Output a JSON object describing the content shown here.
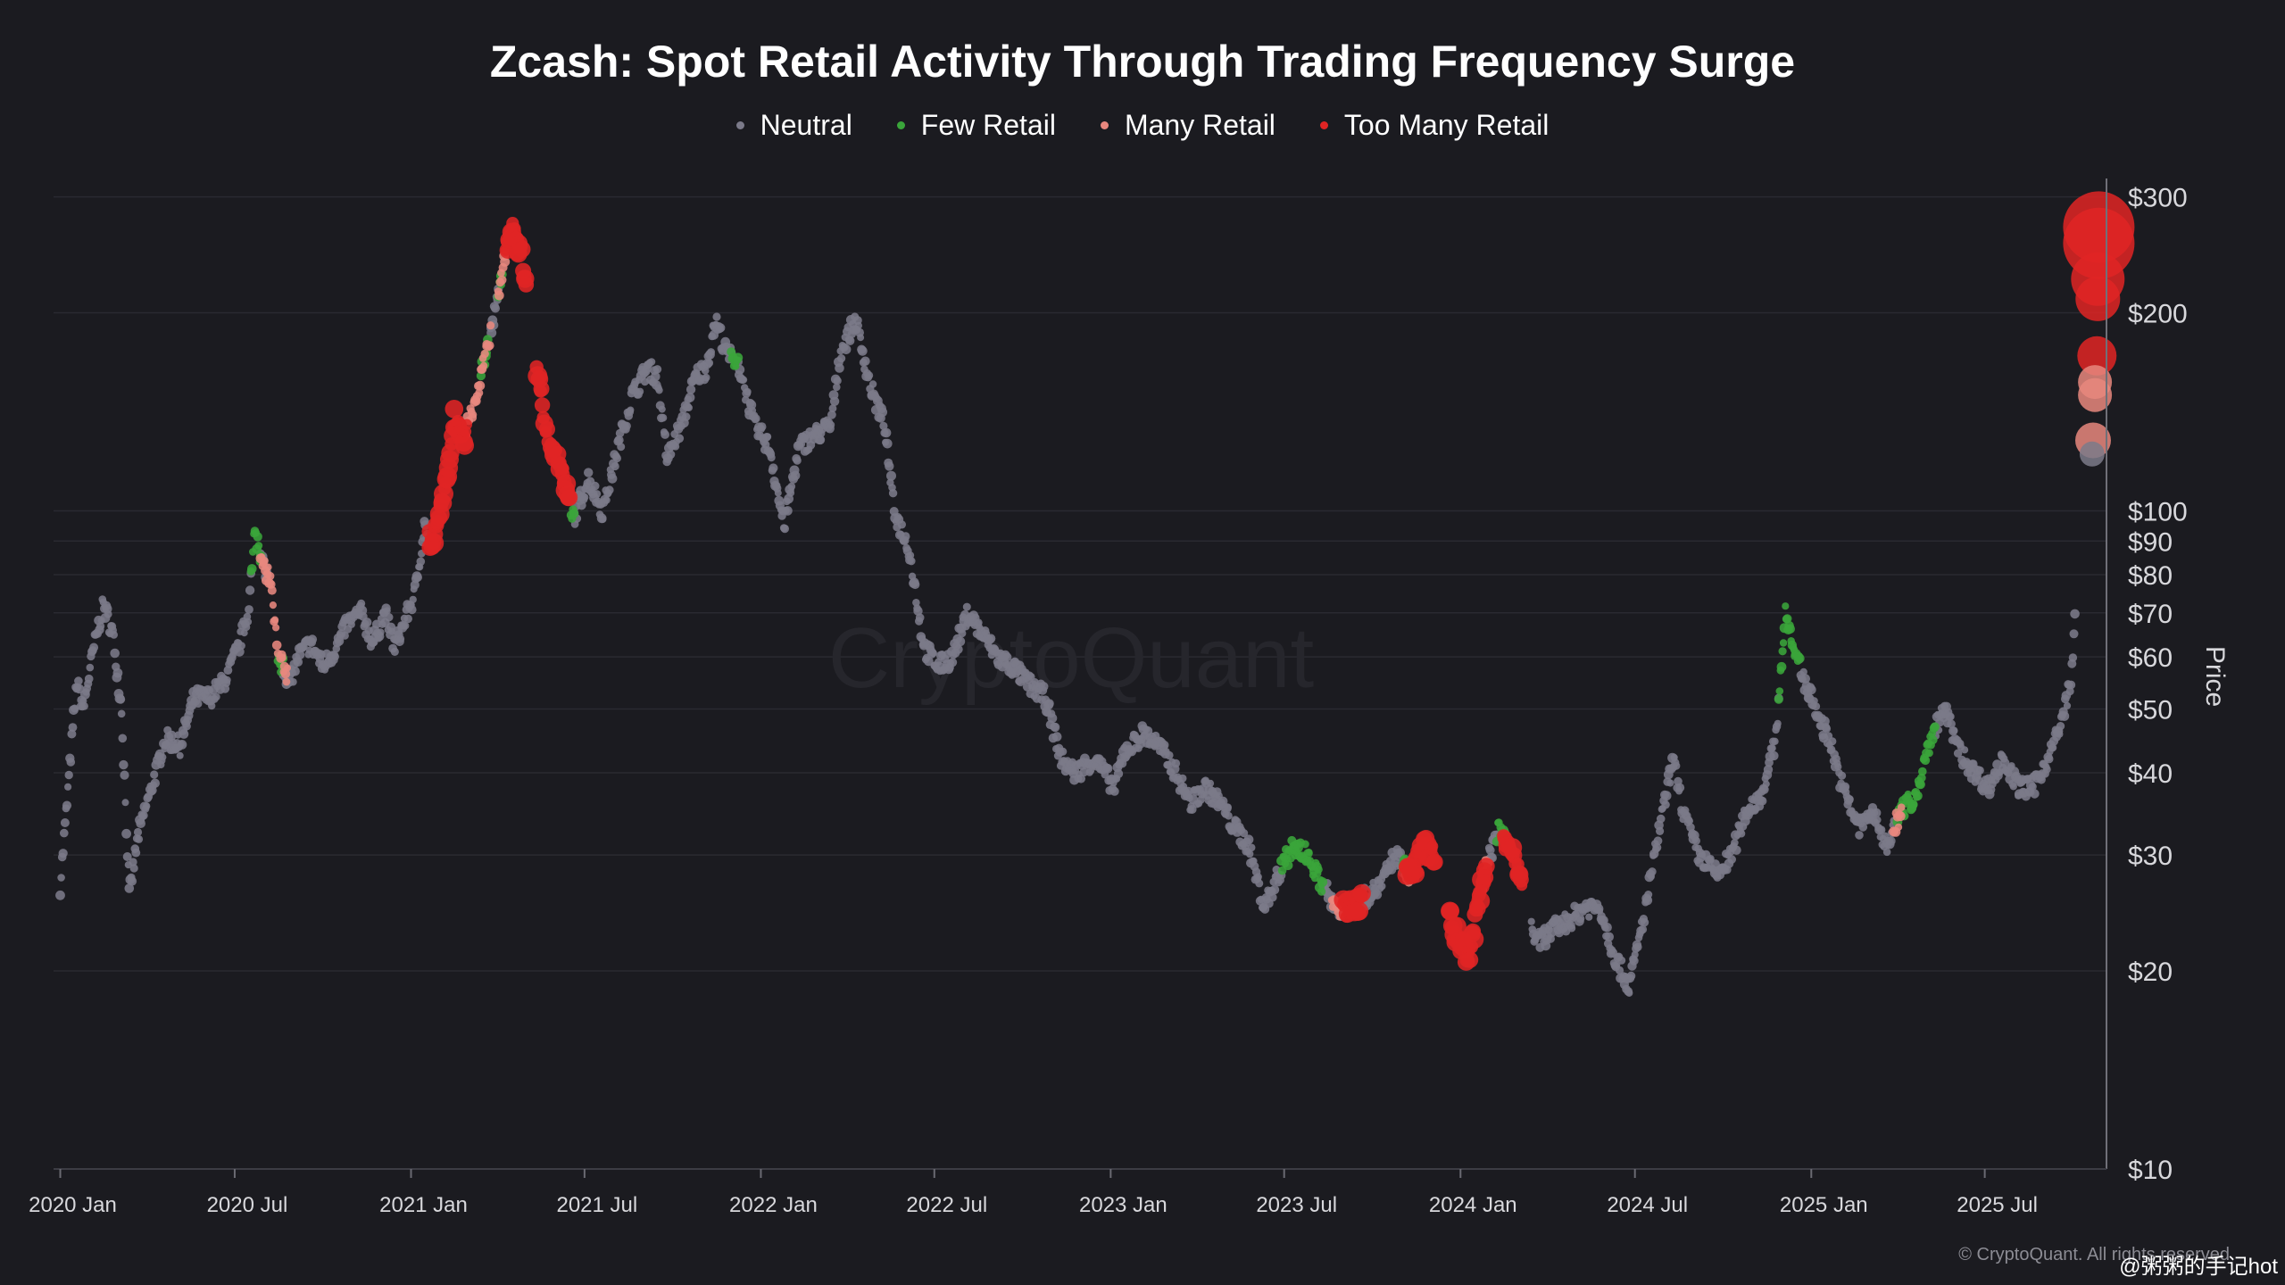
{
  "colors": {
    "background": "#1b1b20",
    "grid": "#2a2a31",
    "neutral": "#7b7a89",
    "few_retail": "#3aa53a",
    "many_retail": "#e8877e",
    "too_many_retail": "#e02424"
  },
  "watermark": "CryptoQuant",
  "footer": "© CryptoQuant. All rights reserved",
  "handle": "@粥粥的手记hot",
  "chart_data": {
    "type": "scatter",
    "title": "Zcash: Spot Retail Activity Through Trading Frequency Surge",
    "xlabel": "",
    "ylabel": "Price",
    "y_scale": "log",
    "ylim": [
      10,
      320
    ],
    "xlim": [
      "2019-12-25",
      "2025-11-05"
    ],
    "grid": true,
    "legend_position": "top-center",
    "x_tick_labels": [
      "2020 Jan",
      "2020 Jul",
      "2021 Jan",
      "2021 Jul",
      "2022 Jan",
      "2022 Jul",
      "2023 Jan",
      "2023 Jul",
      "2024 Jan",
      "2024 Jul",
      "2025 Jan",
      "2025 Jul"
    ],
    "x_tick_dates": [
      "2020-01-01",
      "2020-07-01",
      "2021-01-01",
      "2021-07-01",
      "2022-01-01",
      "2022-07-01",
      "2023-01-01",
      "2023-07-01",
      "2024-01-01",
      "2024-07-01",
      "2025-01-01",
      "2025-07-01"
    ],
    "y_tick_labels": [
      "$300",
      "$200",
      "$100",
      "$90",
      "$80",
      "$70",
      "$60",
      "$50",
      "$40",
      "$30",
      "$20",
      "$10"
    ],
    "y_tick_values": [
      300,
      200,
      100,
      90,
      80,
      70,
      60,
      50,
      40,
      30,
      20,
      10
    ],
    "price_anchors": [
      [
        "2020-01-01",
        27
      ],
      [
        "2020-01-08",
        36
      ],
      [
        "2020-01-18",
        55
      ],
      [
        "2020-01-25",
        50
      ],
      [
        "2020-02-05",
        62
      ],
      [
        "2020-02-15",
        72
      ],
      [
        "2020-02-25",
        65
      ],
      [
        "2020-03-05",
        50
      ],
      [
        "2020-03-13",
        26
      ],
      [
        "2020-03-22",
        32
      ],
      [
        "2020-04-05",
        38
      ],
      [
        "2020-04-20",
        45
      ],
      [
        "2020-05-05",
        44
      ],
      [
        "2020-05-20",
        52
      ],
      [
        "2020-06-05",
        52
      ],
      [
        "2020-06-20",
        55
      ],
      [
        "2020-07-05",
        62
      ],
      [
        "2020-07-15",
        70
      ],
      [
        "2020-07-22",
        93
      ],
      [
        "2020-07-28",
        85
      ],
      [
        "2020-08-08",
        78
      ],
      [
        "2020-08-15",
        60
      ],
      [
        "2020-08-28",
        55
      ],
      [
        "2020-09-05",
        60
      ],
      [
        "2020-09-18",
        63
      ],
      [
        "2020-10-01",
        58
      ],
      [
        "2020-10-15",
        62
      ],
      [
        "2020-10-25",
        67
      ],
      [
        "2020-11-10",
        70
      ],
      [
        "2020-11-22",
        63
      ],
      [
        "2020-12-05",
        70
      ],
      [
        "2020-12-15",
        62
      ],
      [
        "2021-01-05",
        75
      ],
      [
        "2021-01-15",
        95
      ],
      [
        "2021-01-22",
        88
      ],
      [
        "2021-02-05",
        105
      ],
      [
        "2021-02-15",
        140
      ],
      [
        "2021-02-25",
        128
      ],
      [
        "2021-03-10",
        150
      ],
      [
        "2021-03-25",
        185
      ],
      [
        "2021-04-05",
        225
      ],
      [
        "2021-04-15",
        270
      ],
      [
        "2021-04-25",
        250
      ],
      [
        "2021-05-05",
        210
      ],
      [
        "2021-05-12",
        170
      ],
      [
        "2021-05-22",
        130
      ],
      [
        "2021-06-05",
        120
      ],
      [
        "2021-06-20",
        98
      ],
      [
        "2021-07-05",
        112
      ],
      [
        "2021-07-20",
        100
      ],
      [
        "2021-08-05",
        125
      ],
      [
        "2021-08-20",
        150
      ],
      [
        "2021-09-05",
        165
      ],
      [
        "2021-09-15",
        160
      ],
      [
        "2021-09-25",
        120
      ],
      [
        "2021-10-10",
        135
      ],
      [
        "2021-10-25",
        160
      ],
      [
        "2021-11-05",
        165
      ],
      [
        "2021-11-15",
        195
      ],
      [
        "2021-11-25",
        175
      ],
      [
        "2021-12-10",
        165
      ],
      [
        "2021-12-25",
        135
      ],
      [
        "2022-01-10",
        125
      ],
      [
        "2022-01-25",
        95
      ],
      [
        "2022-02-10",
        125
      ],
      [
        "2022-02-25",
        130
      ],
      [
        "2022-03-15",
        135
      ],
      [
        "2022-03-25",
        175
      ],
      [
        "2022-04-10",
        195
      ],
      [
        "2022-04-25",
        155
      ],
      [
        "2022-05-10",
        135
      ],
      [
        "2022-05-20",
        100
      ],
      [
        "2022-06-05",
        87
      ],
      [
        "2022-06-20",
        62
      ],
      [
        "2022-07-05",
        58
      ],
      [
        "2022-07-20",
        60
      ],
      [
        "2022-08-05",
        70
      ],
      [
        "2022-08-20",
        65
      ],
      [
        "2022-09-05",
        60
      ],
      [
        "2022-09-20",
        58
      ],
      [
        "2022-10-05",
        55
      ],
      [
        "2022-10-25",
        52
      ],
      [
        "2022-11-10",
        42
      ],
      [
        "2022-11-25",
        40
      ],
      [
        "2022-12-15",
        42
      ],
      [
        "2023-01-05",
        38
      ],
      [
        "2023-01-15",
        43
      ],
      [
        "2023-02-05",
        46
      ],
      [
        "2023-02-20",
        44
      ],
      [
        "2023-03-10",
        40
      ],
      [
        "2023-03-25",
        36
      ],
      [
        "2023-04-10",
        38
      ],
      [
        "2023-04-25",
        36
      ],
      [
        "2023-05-10",
        33
      ],
      [
        "2023-05-25",
        31
      ],
      [
        "2023-06-10",
        25
      ],
      [
        "2023-06-25",
        28
      ],
      [
        "2023-07-10",
        31
      ],
      [
        "2023-07-25",
        30
      ],
      [
        "2023-08-10",
        27
      ],
      [
        "2023-08-25",
        25
      ],
      [
        "2023-09-10",
        25
      ],
      [
        "2023-09-25",
        26
      ],
      [
        "2023-10-10",
        27
      ],
      [
        "2023-10-25",
        30
      ],
      [
        "2023-11-10",
        28
      ],
      [
        "2023-11-25",
        31
      ],
      [
        "2023-12-10",
        29
      ],
      [
        "2023-12-25",
        23
      ],
      [
        "2024-01-10",
        21
      ],
      [
        "2024-01-25",
        28
      ],
      [
        "2024-02-10",
        33
      ],
      [
        "2024-02-20",
        31
      ],
      [
        "2024-03-05",
        27
      ],
      [
        "2024-03-20",
        22
      ],
      [
        "2024-04-05",
        23
      ],
      [
        "2024-04-25",
        24
      ],
      [
        "2024-05-10",
        25
      ],
      [
        "2024-05-25",
        25
      ],
      [
        "2024-06-10",
        21
      ],
      [
        "2024-06-25",
        19
      ],
      [
        "2024-07-10",
        24
      ],
      [
        "2024-07-25",
        32
      ],
      [
        "2024-08-10",
        42
      ],
      [
        "2024-08-20",
        35
      ],
      [
        "2024-09-05",
        30
      ],
      [
        "2024-09-25",
        28
      ],
      [
        "2024-10-10",
        30
      ],
      [
        "2024-10-25",
        35
      ],
      [
        "2024-11-10",
        37
      ],
      [
        "2024-11-25",
        45
      ],
      [
        "2024-12-05",
        70
      ],
      [
        "2024-12-15",
        62
      ],
      [
        "2024-12-25",
        55
      ],
      [
        "2025-01-10",
        48
      ],
      [
        "2025-01-20",
        45
      ],
      [
        "2025-02-05",
        37
      ],
      [
        "2025-02-20",
        33
      ],
      [
        "2025-03-05",
        35
      ],
      [
        "2025-03-20",
        31
      ],
      [
        "2025-04-05",
        35
      ],
      [
        "2025-04-20",
        37
      ],
      [
        "2025-05-05",
        45
      ],
      [
        "2025-05-20",
        50
      ],
      [
        "2025-06-05",
        43
      ],
      [
        "2025-06-20",
        40
      ],
      [
        "2025-07-05",
        38
      ],
      [
        "2025-07-20",
        42
      ],
      [
        "2025-08-05",
        38
      ],
      [
        "2025-08-20",
        38
      ],
      [
        "2025-09-05",
        42
      ],
      [
        "2025-09-20",
        48
      ],
      [
        "2025-10-01",
        58
      ],
      [
        "2025-10-03",
        72
      ]
    ],
    "series": [
      {
        "name": "Neutral",
        "size": "small",
        "ranges": [
          [
            "2020-01-01",
            "2020-07-18"
          ],
          [
            "2020-07-28",
            "2020-08-05"
          ],
          [
            "2020-08-20",
            "2021-01-20"
          ],
          [
            "2021-03-25",
            "2021-04-02"
          ],
          [
            "2021-06-20",
            "2021-12-01"
          ],
          [
            "2021-12-08",
            "2022-12-31"
          ],
          [
            "2023-01-01",
            "2023-06-28"
          ],
          [
            "2023-08-10",
            "2023-09-01"
          ],
          [
            "2023-09-20",
            "2023-11-01"
          ],
          [
            "2024-01-28",
            "2024-02-08"
          ],
          [
            "2024-03-15",
            "2024-11-28"
          ],
          [
            "2024-12-20",
            "2025-03-28"
          ],
          [
            "2025-05-10",
            "2025-10-03"
          ]
        ]
      },
      {
        "name": "Few Retail",
        "size": "small",
        "ranges": [
          [
            "2020-07-18",
            "2020-07-28"
          ],
          [
            "2020-08-15",
            "2020-08-20"
          ],
          [
            "2021-03-15",
            "2021-03-22"
          ],
          [
            "2021-04-02",
            "2021-04-06"
          ],
          [
            "2021-06-15",
            "2021-06-20"
          ],
          [
            "2021-12-01",
            "2021-12-08"
          ],
          [
            "2023-06-28",
            "2023-08-10"
          ],
          [
            "2023-11-01",
            "2023-11-05"
          ],
          [
            "2024-02-08",
            "2024-02-20"
          ],
          [
            "2024-11-28",
            "2024-12-20"
          ],
          [
            "2025-04-01",
            "2025-05-10"
          ]
        ]
      },
      {
        "name": "Many Retail",
        "size": "small",
        "ranges": [
          [
            "2020-07-28",
            "2020-08-15"
          ],
          [
            "2020-08-18",
            "2020-08-25"
          ],
          [
            "2021-02-28",
            "2021-03-25"
          ],
          [
            "2021-04-02",
            "2021-04-12"
          ],
          [
            "2023-08-20",
            "2023-09-05"
          ],
          [
            "2023-11-03",
            "2023-11-10"
          ],
          [
            "2024-01-20",
            "2024-01-30"
          ],
          [
            "2025-03-28",
            "2025-04-05"
          ]
        ]
      },
      {
        "name": "Too Many Retail",
        "size": "large",
        "ranges": [
          [
            "2021-01-20",
            "2021-02-28"
          ],
          [
            "2021-04-10",
            "2021-05-01"
          ],
          [
            "2021-05-12",
            "2021-06-15"
          ],
          [
            "2023-09-01",
            "2023-09-20"
          ],
          [
            "2023-11-05",
            "2023-12-05"
          ],
          [
            "2023-12-20",
            "2024-01-28"
          ],
          [
            "2024-02-15",
            "2024-03-05"
          ]
        ]
      }
    ],
    "recent_bubbles": [
      {
        "date": "2025-10-28",
        "value": 270,
        "category": "Too Many Retail",
        "magnitude": 3
      },
      {
        "date": "2025-10-28",
        "value": 255,
        "category": "Too Many Retail",
        "magnitude": 3
      },
      {
        "date": "2025-10-27",
        "value": 225,
        "category": "Too Many Retail",
        "magnitude": 2
      },
      {
        "date": "2025-10-27",
        "value": 210,
        "category": "Too Many Retail",
        "magnitude": 1.5
      },
      {
        "date": "2025-10-26",
        "value": 172,
        "category": "Too Many Retail",
        "magnitude": 1.2
      },
      {
        "date": "2025-10-24",
        "value": 157,
        "category": "Many Retail",
        "magnitude": 0.9
      },
      {
        "date": "2025-10-24",
        "value": 150,
        "category": "Many Retail",
        "magnitude": 0.9
      },
      {
        "date": "2025-10-22",
        "value": 128,
        "category": "Many Retail",
        "magnitude": 1
      },
      {
        "date": "2025-10-21",
        "value": 122,
        "category": "Neutral",
        "magnitude": 0.4
      }
    ]
  }
}
